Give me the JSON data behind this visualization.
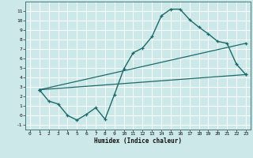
{
  "title": "",
  "xlabel": "Humidex (Indice chaleur)",
  "bg_color": "#cce8e8",
  "line_color": "#1a6b6b",
  "grid_color": "#ffffff",
  "xlim": [
    -0.5,
    23.5
  ],
  "ylim": [
    -1.5,
    12.0
  ],
  "xticks": [
    0,
    1,
    2,
    3,
    4,
    5,
    6,
    7,
    8,
    9,
    10,
    11,
    12,
    13,
    14,
    15,
    16,
    17,
    18,
    19,
    20,
    21,
    22,
    23
  ],
  "yticks": [
    -1,
    0,
    1,
    2,
    3,
    4,
    5,
    6,
    7,
    8,
    9,
    10,
    11
  ],
  "curve_x": [
    1,
    2,
    3,
    4,
    5,
    6,
    7,
    8,
    9,
    10,
    11,
    12,
    13,
    14,
    15,
    16,
    17,
    18,
    19,
    20,
    21,
    22,
    23
  ],
  "curve_y": [
    2.7,
    1.5,
    1.2,
    0.0,
    -0.5,
    0.1,
    0.8,
    -0.4,
    2.2,
    4.9,
    6.6,
    7.1,
    8.3,
    10.5,
    11.2,
    11.2,
    10.1,
    9.3,
    8.6,
    7.8,
    7.6,
    5.4,
    4.3
  ],
  "line1_x": [
    1,
    23
  ],
  "line1_y": [
    2.7,
    7.6
  ],
  "line2_x": [
    1,
    23
  ],
  "line2_y": [
    2.7,
    4.3
  ]
}
